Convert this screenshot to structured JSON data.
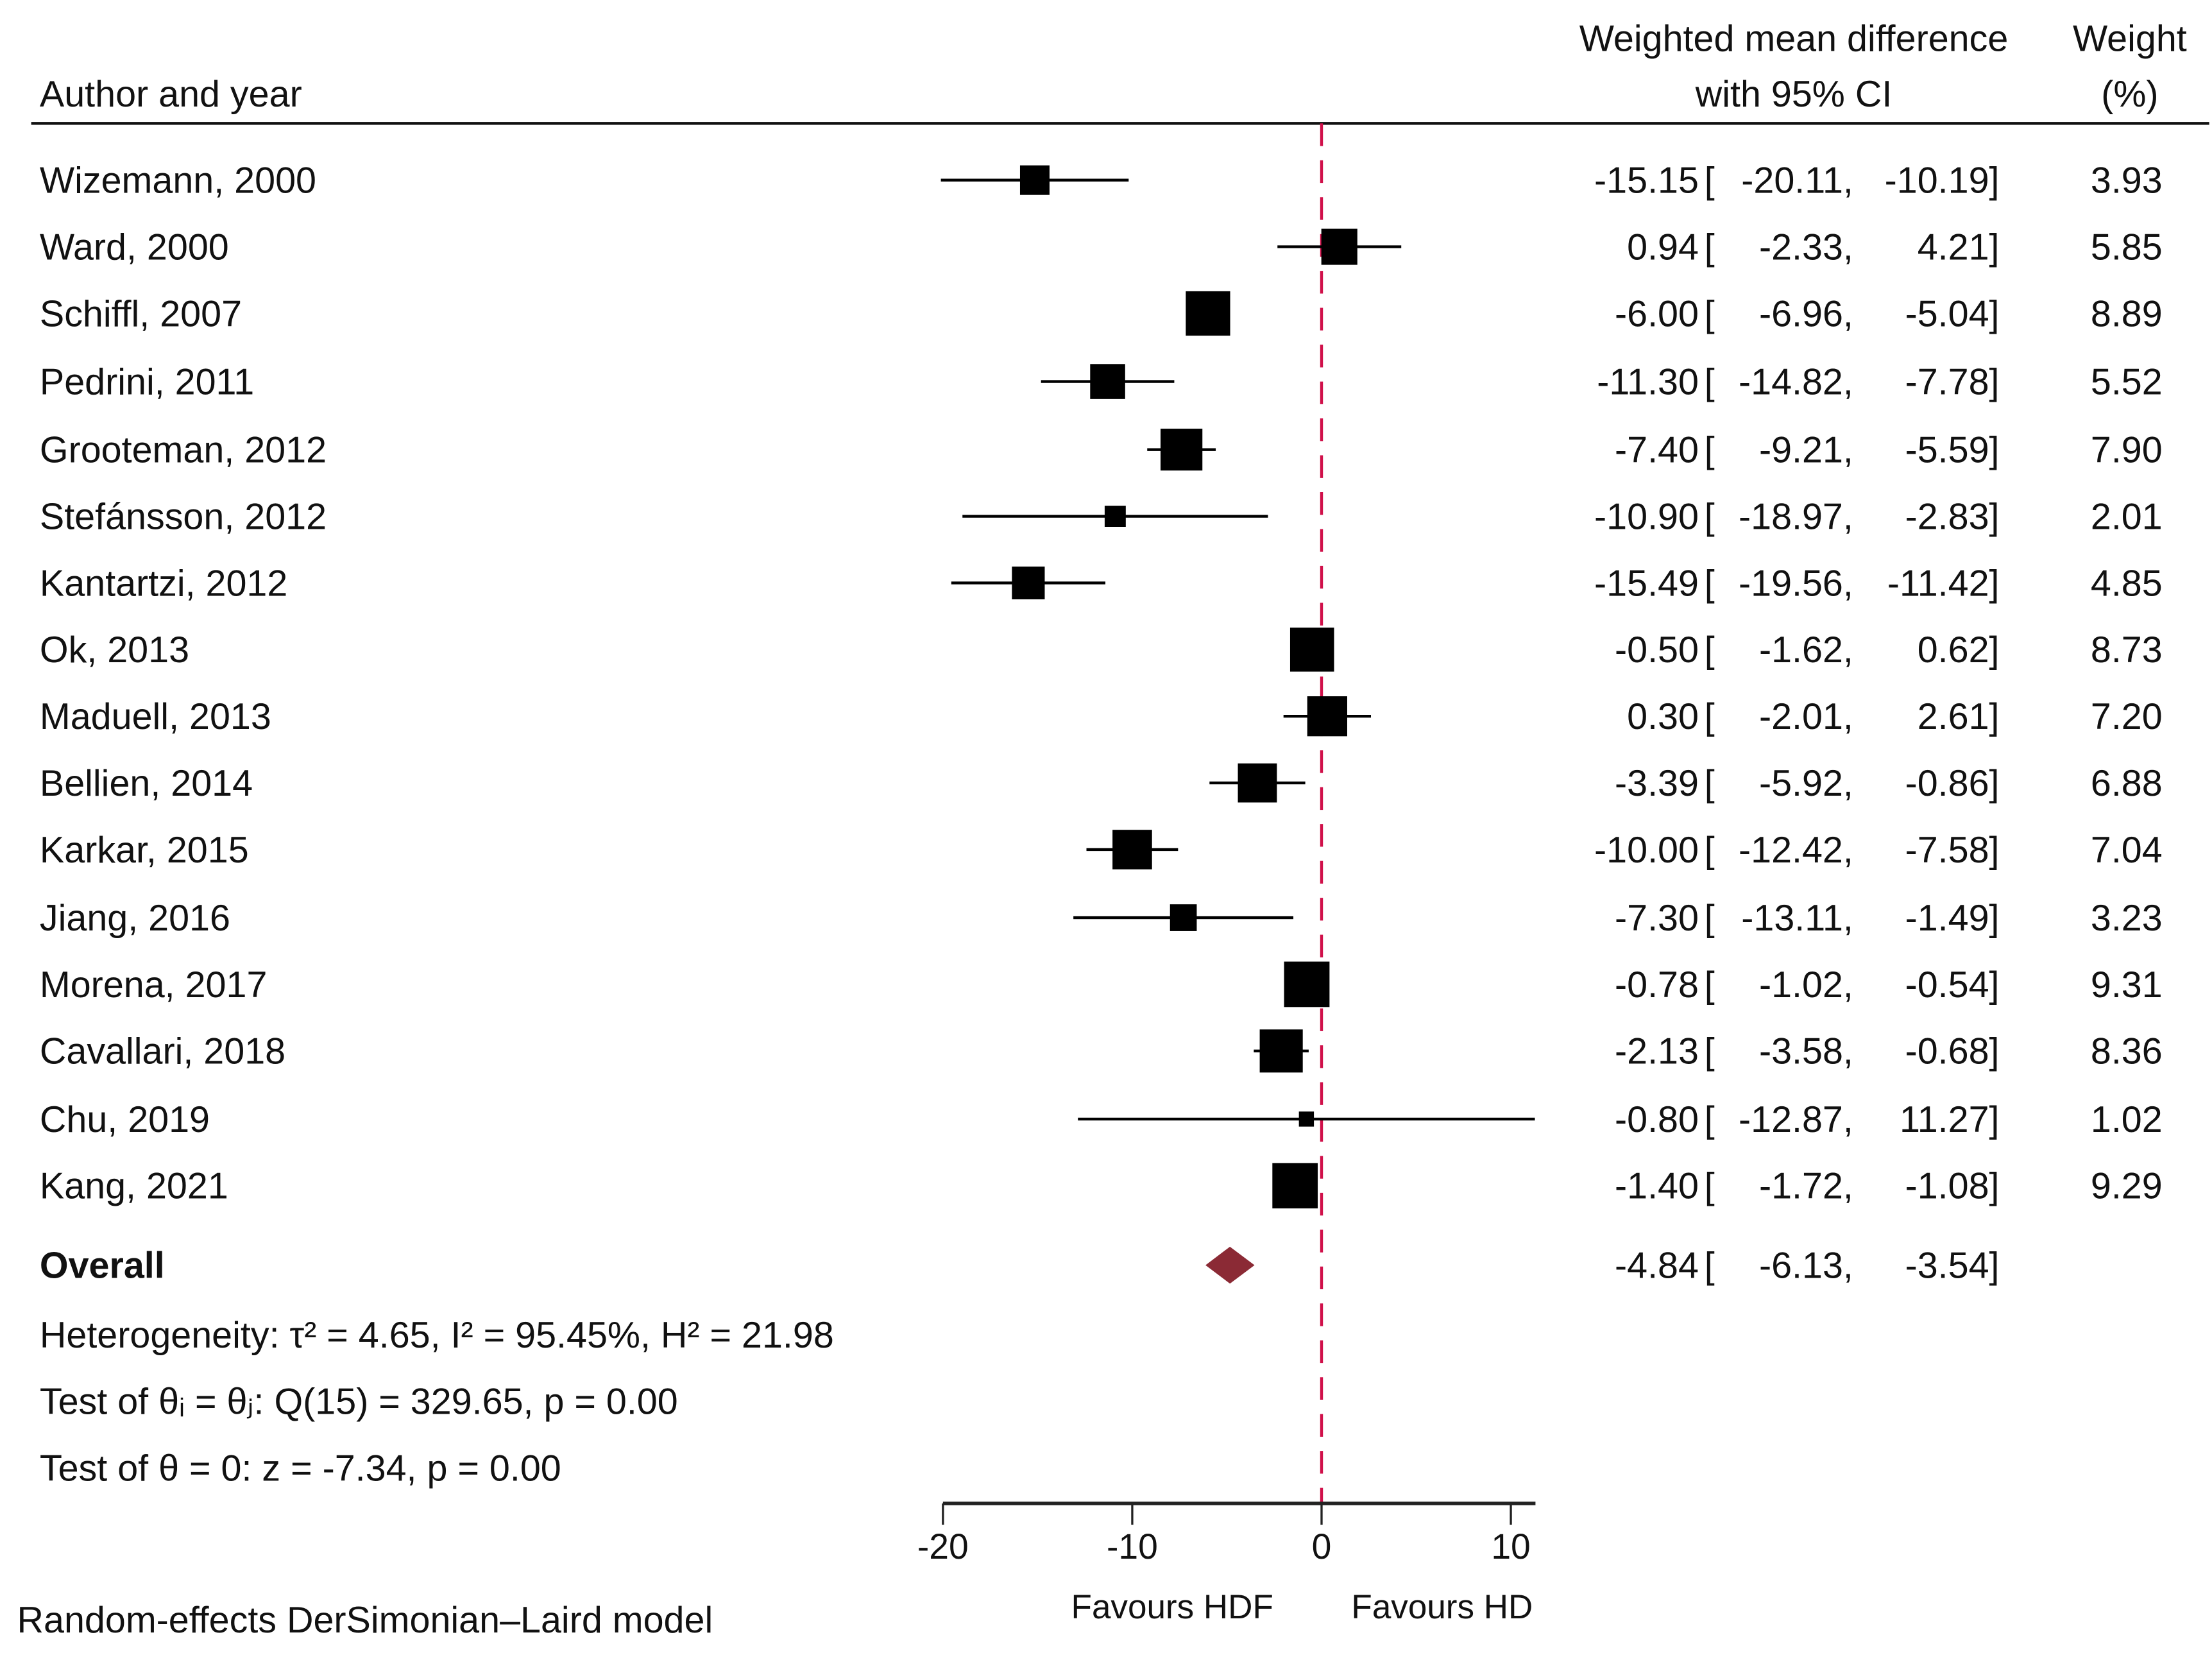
{
  "chart_data": {
    "type": "forest",
    "headers": {
      "study": "Author and year",
      "effect_line1": "Weighted mean difference",
      "effect_line2": "with 95% CI",
      "weight_line1": "Weight",
      "weight_line2": "(%)"
    },
    "studies": [
      {
        "label": "Wizemann, 2000",
        "est": -15.15,
        "lo": -20.11,
        "hi": -10.19,
        "weight": 3.93,
        "est_text": "-15.15",
        "lo_text": "-20.11,",
        "hi_text": "-10.19]",
        "weight_text": "3.93"
      },
      {
        "label": "Ward, 2000",
        "est": 0.94,
        "lo": -2.33,
        "hi": 4.21,
        "weight": 5.85,
        "est_text": "0.94",
        "lo_text": "-2.33,",
        "hi_text": "4.21]",
        "weight_text": "5.85"
      },
      {
        "label": "Schiffl, 2007",
        "est": -6.0,
        "lo": -6.96,
        "hi": -5.04,
        "weight": 8.89,
        "est_text": "-6.00",
        "lo_text": "-6.96,",
        "hi_text": "-5.04]",
        "weight_text": "8.89"
      },
      {
        "label": "Pedrini, 2011",
        "est": -11.3,
        "lo": -14.82,
        "hi": -7.78,
        "weight": 5.52,
        "est_text": "-11.30",
        "lo_text": "-14.82,",
        "hi_text": "-7.78]",
        "weight_text": "5.52"
      },
      {
        "label": "Grooteman, 2012",
        "est": -7.4,
        "lo": -9.21,
        "hi": -5.59,
        "weight": 7.9,
        "est_text": "-7.40",
        "lo_text": "-9.21,",
        "hi_text": "-5.59]",
        "weight_text": "7.90"
      },
      {
        "label": "Stefánsson, 2012",
        "est": -10.9,
        "lo": -18.97,
        "hi": -2.83,
        "weight": 2.01,
        "est_text": "-10.90",
        "lo_text": "-18.97,",
        "hi_text": "-2.83]",
        "weight_text": "2.01"
      },
      {
        "label": "Kantartzi, 2012",
        "est": -15.49,
        "lo": -19.56,
        "hi": -11.42,
        "weight": 4.85,
        "est_text": "-15.49",
        "lo_text": "-19.56,",
        "hi_text": "-11.42]",
        "weight_text": "4.85"
      },
      {
        "label": "Ok, 2013",
        "est": -0.5,
        "lo": -1.62,
        "hi": 0.62,
        "weight": 8.73,
        "est_text": "-0.50",
        "lo_text": "-1.62,",
        "hi_text": "0.62]",
        "weight_text": "8.73"
      },
      {
        "label": "Maduell, 2013",
        "est": 0.3,
        "lo": -2.01,
        "hi": 2.61,
        "weight": 7.2,
        "est_text": "0.30",
        "lo_text": "-2.01,",
        "hi_text": "2.61]",
        "weight_text": "7.20"
      },
      {
        "label": "Bellien, 2014",
        "est": -3.39,
        "lo": -5.92,
        "hi": -0.86,
        "weight": 6.88,
        "est_text": "-3.39",
        "lo_text": "-5.92,",
        "hi_text": "-0.86]",
        "weight_text": "6.88"
      },
      {
        "label": "Karkar, 2015",
        "est": -10.0,
        "lo": -12.42,
        "hi": -7.58,
        "weight": 7.04,
        "est_text": "-10.00",
        "lo_text": "-12.42,",
        "hi_text": "-7.58]",
        "weight_text": "7.04"
      },
      {
        "label": "Jiang, 2016",
        "est": -7.3,
        "lo": -13.11,
        "hi": -1.49,
        "weight": 3.23,
        "est_text": "-7.30",
        "lo_text": "-13.11,",
        "hi_text": "-1.49]",
        "weight_text": "3.23"
      },
      {
        "label": "Morena, 2017",
        "est": -0.78,
        "lo": -1.02,
        "hi": -0.54,
        "weight": 9.31,
        "est_text": "-0.78",
        "lo_text": "-1.02,",
        "hi_text": "-0.54]",
        "weight_text": "9.31"
      },
      {
        "label": "Cavallari, 2018",
        "est": -2.13,
        "lo": -3.58,
        "hi": -0.68,
        "weight": 8.36,
        "est_text": "-2.13",
        "lo_text": "-3.58,",
        "hi_text": "-0.68]",
        "weight_text": "8.36"
      },
      {
        "label": "Chu, 2019",
        "est": -0.8,
        "lo": -12.87,
        "hi": 11.27,
        "weight": 1.02,
        "est_text": "-0.80",
        "lo_text": "-12.87,",
        "hi_text": "11.27]",
        "weight_text": "1.02"
      },
      {
        "label": "Kang, 2021",
        "est": -1.4,
        "lo": -1.72,
        "hi": -1.08,
        "weight": 9.29,
        "est_text": "-1.40",
        "lo_text": "-1.72,",
        "hi_text": "-1.08]",
        "weight_text": "9.29"
      }
    ],
    "overall": {
      "label": "Overall",
      "est": -4.84,
      "lo": -6.13,
      "hi": -3.54,
      "est_text": "-4.84",
      "lo_text": "-6.13,",
      "hi_text": "-3.54]"
    },
    "stats": {
      "heterogeneity": "Heterogeneity: τ² = 4.65, I² = 95.45%, H² = 21.98",
      "test_equal": "Test of θᵢ = θⱼ: Q(15) = 329.65, p = 0.00",
      "test_zero": "Test of θ = 0: z = -7.34, p = 0.00"
    },
    "xaxis": {
      "range": [
        -20,
        11.3
      ],
      "ticks": [
        -20,
        -10,
        0,
        10
      ],
      "tick_labels": [
        "-20",
        "-10",
        "0",
        "10"
      ],
      "null_line": 0
    },
    "favours_left": "Favours HDF",
    "favours_right": "Favours HD",
    "model_note": "Random-effects DerSimonian–Laird model",
    "colors": {
      "square": "#000000",
      "diamond": "#8b2a35",
      "null_line": "#d0104a"
    }
  }
}
